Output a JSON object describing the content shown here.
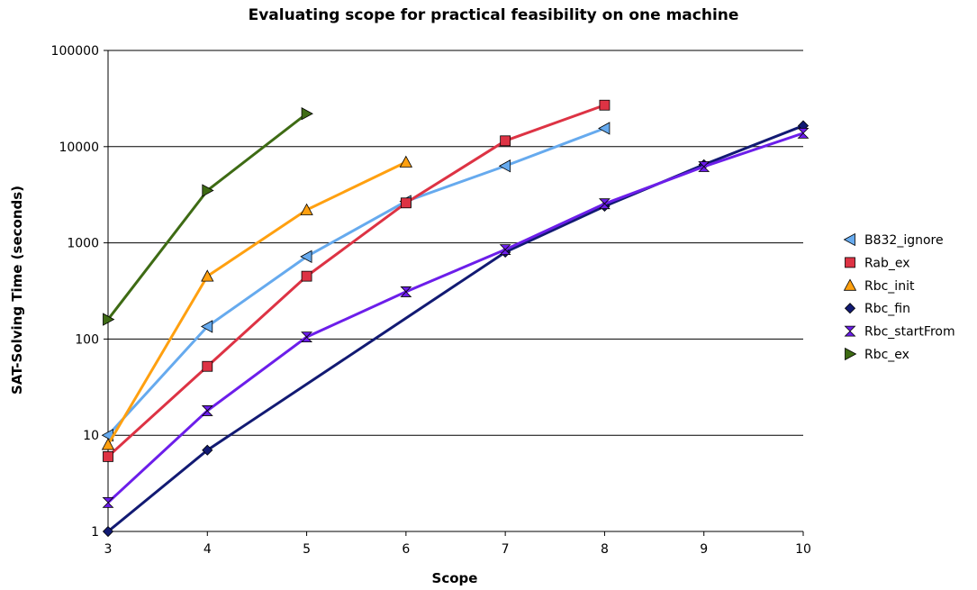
{
  "chart_data": {
    "type": "line",
    "title": "Evaluating scope for practical feasibility on one machine",
    "xlabel": "Scope",
    "ylabel": "SAT-Solving Time (seconds)",
    "xlim": [
      3,
      10
    ],
    "ylim": [
      1,
      100000
    ],
    "yscale": "log",
    "x_ticks": [
      3,
      4,
      5,
      6,
      7,
      8,
      9,
      10
    ],
    "y_ticks": [
      1,
      10,
      100,
      1000,
      10000,
      100000
    ],
    "grid": "horizontal",
    "legend_position": "right",
    "series": [
      {
        "name": "B832_ignore",
        "color": "#66aaee",
        "marker": "triangle-left",
        "x": [
          3,
          4,
          5,
          6,
          7,
          8
        ],
        "values": [
          10,
          135,
          720,
          2700,
          6300,
          15500
        ]
      },
      {
        "name": "Rab_ex",
        "color": "#dd3344",
        "marker": "square",
        "x": [
          3,
          4,
          5,
          6,
          7,
          8
        ],
        "values": [
          6,
          52,
          450,
          2600,
          11500,
          27000
        ]
      },
      {
        "name": "Rbc_init",
        "color": "#ffa010",
        "marker": "triangle-up",
        "x": [
          3,
          4,
          5,
          6
        ],
        "values": [
          8,
          450,
          2200,
          6900
        ]
      },
      {
        "name": "Rbc_fin",
        "color": "#121a73",
        "marker": "diamond",
        "x": [
          3,
          4,
          7,
          8,
          9,
          10
        ],
        "values": [
          1,
          7,
          800,
          2400,
          6500,
          16500
        ]
      },
      {
        "name": "Rbc_startFrom",
        "color": "#6c1eea",
        "marker": "hourglass",
        "x": [
          3,
          4,
          5,
          6,
          7,
          8,
          9,
          10
        ],
        "values": [
          2,
          18,
          105,
          310,
          850,
          2550,
          6200,
          13800
        ]
      },
      {
        "name": "Rbc_ex",
        "color": "#3e6b14",
        "marker": "triangle-right",
        "x": [
          3,
          4,
          5
        ],
        "values": [
          160,
          3500,
          22000
        ]
      }
    ]
  }
}
